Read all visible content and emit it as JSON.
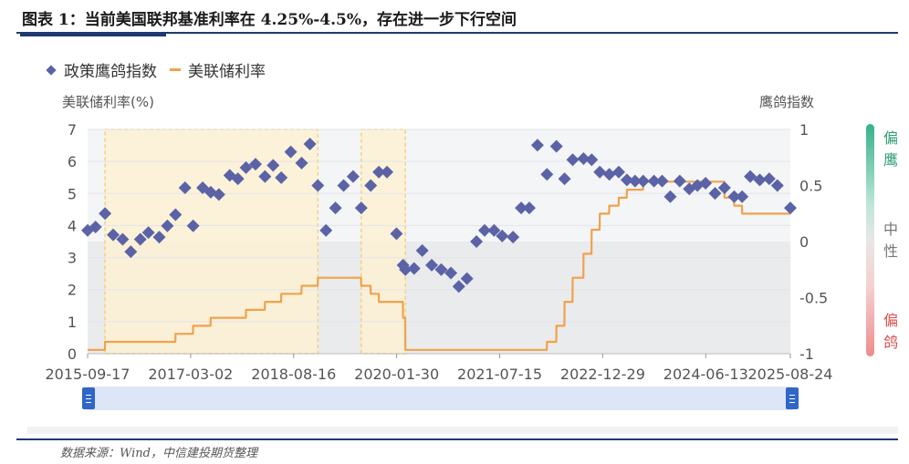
{
  "figure": {
    "title": "图表 1：当前美国联邦基准利率在 4.25%-4.5%，存在进一步下行空间",
    "source": "数据来源：Wind，中信建投期货整理"
  },
  "side_scale": {
    "hawkish_label": "偏鹰",
    "neutral_label": "中性",
    "dovish_label": "偏鸽",
    "hawkish_color": "#2a9a70",
    "dovish_color": "#d14f4f"
  },
  "chart_data": {
    "type": "line",
    "legend": [
      {
        "name": "政策鹰鸽指数",
        "marker": "diamond",
        "color": "#5b63a6"
      },
      {
        "name": "美联储利率",
        "marker": "line",
        "color": "#f0a24a"
      }
    ],
    "ylabel_left": "美联储利率(%)",
    "ylabel_right": "鹰鸽指数",
    "ylim_left": [
      0,
      7
    ],
    "yticks_left": [
      "0",
      "1",
      "2",
      "3",
      "4",
      "5",
      "6",
      "7"
    ],
    "ylim_right": [
      -1,
      1
    ],
    "yticks_right": [
      "-1",
      "-0.5",
      "0",
      "0.5",
      "1"
    ],
    "x_ticks": [
      "2015-09-17",
      "2017-03-02",
      "2018-08-16",
      "2020-01-30",
      "2021-07-15",
      "2022-12-29",
      "2024-06-13",
      "2025-08-24"
    ],
    "x_range": [
      "2015-09-17",
      "2025-08-24"
    ],
    "shaded_periods": [
      [
        "2015-12-16",
        "2018-12-19"
      ],
      [
        "2019-07-31",
        "2020-03-15"
      ]
    ],
    "series": [
      {
        "name": "政策鹰鸽指数",
        "axis": "right",
        "points": [
          [
            "2015-09-17",
            0.1
          ],
          [
            "2015-10-28",
            0.13
          ],
          [
            "2015-12-16",
            0.25
          ],
          [
            "2016-01-27",
            0.06
          ],
          [
            "2016-03-16",
            0.02
          ],
          [
            "2016-04-27",
            -0.09
          ],
          [
            "2016-06-15",
            0.02
          ],
          [
            "2016-07-27",
            0.08
          ],
          [
            "2016-09-21",
            0.04
          ],
          [
            "2016-11-02",
            0.14
          ],
          [
            "2016-12-14",
            0.24
          ],
          [
            "2017-02-01",
            0.48
          ],
          [
            "2017-03-15",
            0.14
          ],
          [
            "2017-05-03",
            0.48
          ],
          [
            "2017-06-14",
            0.44
          ],
          [
            "2017-07-26",
            0.42
          ],
          [
            "2017-09-20",
            0.59
          ],
          [
            "2017-11-01",
            0.56
          ],
          [
            "2017-12-13",
            0.66
          ],
          [
            "2018-01-31",
            0.69
          ],
          [
            "2018-03-21",
            0.58
          ],
          [
            "2018-05-02",
            0.68
          ],
          [
            "2018-06-13",
            0.57
          ],
          [
            "2018-08-01",
            0.8
          ],
          [
            "2018-09-26",
            0.7
          ],
          [
            "2018-11-08",
            0.87
          ],
          [
            "2018-12-19",
            0.5
          ],
          [
            "2019-01-30",
            0.1
          ],
          [
            "2019-03-20",
            0.3
          ],
          [
            "2019-05-01",
            0.5
          ],
          [
            "2019-06-19",
            0.58
          ],
          [
            "2019-07-31",
            0.3
          ],
          [
            "2019-09-18",
            0.5
          ],
          [
            "2019-10-30",
            0.62
          ],
          [
            "2019-12-11",
            0.62
          ],
          [
            "2020-01-29",
            0.07
          ],
          [
            "2020-03-03",
            -0.21
          ],
          [
            "2020-03-15",
            -0.25
          ],
          [
            "2020-04-29",
            -0.24
          ],
          [
            "2020-06-10",
            -0.08
          ],
          [
            "2020-07-29",
            -0.21
          ],
          [
            "2020-09-16",
            -0.25
          ],
          [
            "2020-11-05",
            -0.28
          ],
          [
            "2020-12-16",
            -0.4
          ],
          [
            "2021-01-27",
            -0.33
          ],
          [
            "2021-03-17",
            0.0
          ],
          [
            "2021-04-28",
            0.1
          ],
          [
            "2021-06-16",
            0.1
          ],
          [
            "2021-07-28",
            0.05
          ],
          [
            "2021-09-22",
            0.04
          ],
          [
            "2021-11-03",
            0.3
          ],
          [
            "2021-12-15",
            0.3
          ],
          [
            "2022-01-26",
            0.86
          ],
          [
            "2022-03-16",
            0.6
          ],
          [
            "2022-05-04",
            0.85
          ],
          [
            "2022-06-15",
            0.56
          ],
          [
            "2022-07-27",
            0.73
          ],
          [
            "2022-09-21",
            0.74
          ],
          [
            "2022-11-02",
            0.73
          ],
          [
            "2022-12-14",
            0.62
          ],
          [
            "2023-02-01",
            0.6
          ],
          [
            "2023-03-22",
            0.62
          ],
          [
            "2023-05-03",
            0.55
          ],
          [
            "2023-06-14",
            0.54
          ],
          [
            "2023-07-26",
            0.54
          ],
          [
            "2023-09-20",
            0.54
          ],
          [
            "2023-11-01",
            0.54
          ],
          [
            "2023-12-13",
            0.4
          ],
          [
            "2024-01-31",
            0.54
          ],
          [
            "2024-03-20",
            0.47
          ],
          [
            "2024-05-01",
            0.5
          ],
          [
            "2024-06-12",
            0.52
          ],
          [
            "2024-07-31",
            0.43
          ],
          [
            "2024-09-18",
            0.48
          ],
          [
            "2024-11-07",
            0.4
          ],
          [
            "2024-12-18",
            0.4
          ],
          [
            "2025-01-29",
            0.58
          ],
          [
            "2025-03-19",
            0.55
          ],
          [
            "2025-05-07",
            0.56
          ],
          [
            "2025-06-18",
            0.5
          ],
          [
            "2025-08-24",
            0.3
          ]
        ]
      },
      {
        "name": "美联储利率",
        "axis": "left",
        "points": [
          [
            "2015-09-17",
            0.12
          ],
          [
            "2015-12-15",
            0.12
          ],
          [
            "2015-12-16",
            0.37
          ],
          [
            "2016-12-13",
            0.37
          ],
          [
            "2016-12-14",
            0.62
          ],
          [
            "2017-03-14",
            0.62
          ],
          [
            "2017-03-15",
            0.87
          ],
          [
            "2017-06-13",
            0.87
          ],
          [
            "2017-06-14",
            1.12
          ],
          [
            "2017-12-12",
            1.12
          ],
          [
            "2017-12-13",
            1.37
          ],
          [
            "2018-03-20",
            1.37
          ],
          [
            "2018-03-21",
            1.62
          ],
          [
            "2018-06-12",
            1.62
          ],
          [
            "2018-06-13",
            1.87
          ],
          [
            "2018-09-25",
            1.87
          ],
          [
            "2018-09-26",
            2.12
          ],
          [
            "2018-12-18",
            2.12
          ],
          [
            "2018-12-19",
            2.37
          ],
          [
            "2019-07-30",
            2.37
          ],
          [
            "2019-07-31",
            2.12
          ],
          [
            "2019-09-17",
            2.12
          ],
          [
            "2019-09-18",
            1.87
          ],
          [
            "2019-10-29",
            1.87
          ],
          [
            "2019-10-30",
            1.62
          ],
          [
            "2020-03-02",
            1.62
          ],
          [
            "2020-03-03",
            1.12
          ],
          [
            "2020-03-14",
            1.12
          ],
          [
            "2020-03-15",
            0.12
          ],
          [
            "2022-03-15",
            0.12
          ],
          [
            "2022-03-16",
            0.37
          ],
          [
            "2022-05-03",
            0.37
          ],
          [
            "2022-05-04",
            0.87
          ],
          [
            "2022-06-14",
            0.87
          ],
          [
            "2022-06-15",
            1.62
          ],
          [
            "2022-07-26",
            1.62
          ],
          [
            "2022-07-27",
            2.37
          ],
          [
            "2022-09-20",
            2.37
          ],
          [
            "2022-09-21",
            3.12
          ],
          [
            "2022-11-01",
            3.12
          ],
          [
            "2022-11-02",
            3.87
          ],
          [
            "2022-12-13",
            3.87
          ],
          [
            "2022-12-14",
            4.37
          ],
          [
            "2023-01-31",
            4.37
          ],
          [
            "2023-02-01",
            4.62
          ],
          [
            "2023-03-21",
            4.62
          ],
          [
            "2023-03-22",
            4.87
          ],
          [
            "2023-05-02",
            4.87
          ],
          [
            "2023-05-03",
            5.12
          ],
          [
            "2023-07-25",
            5.12
          ],
          [
            "2023-07-26",
            5.37
          ],
          [
            "2024-09-17",
            5.37
          ],
          [
            "2024-09-18",
            4.87
          ],
          [
            "2024-11-06",
            4.87
          ],
          [
            "2024-11-07",
            4.62
          ],
          [
            "2024-12-17",
            4.62
          ],
          [
            "2024-12-18",
            4.37
          ],
          [
            "2025-08-24",
            4.37
          ]
        ]
      }
    ]
  }
}
